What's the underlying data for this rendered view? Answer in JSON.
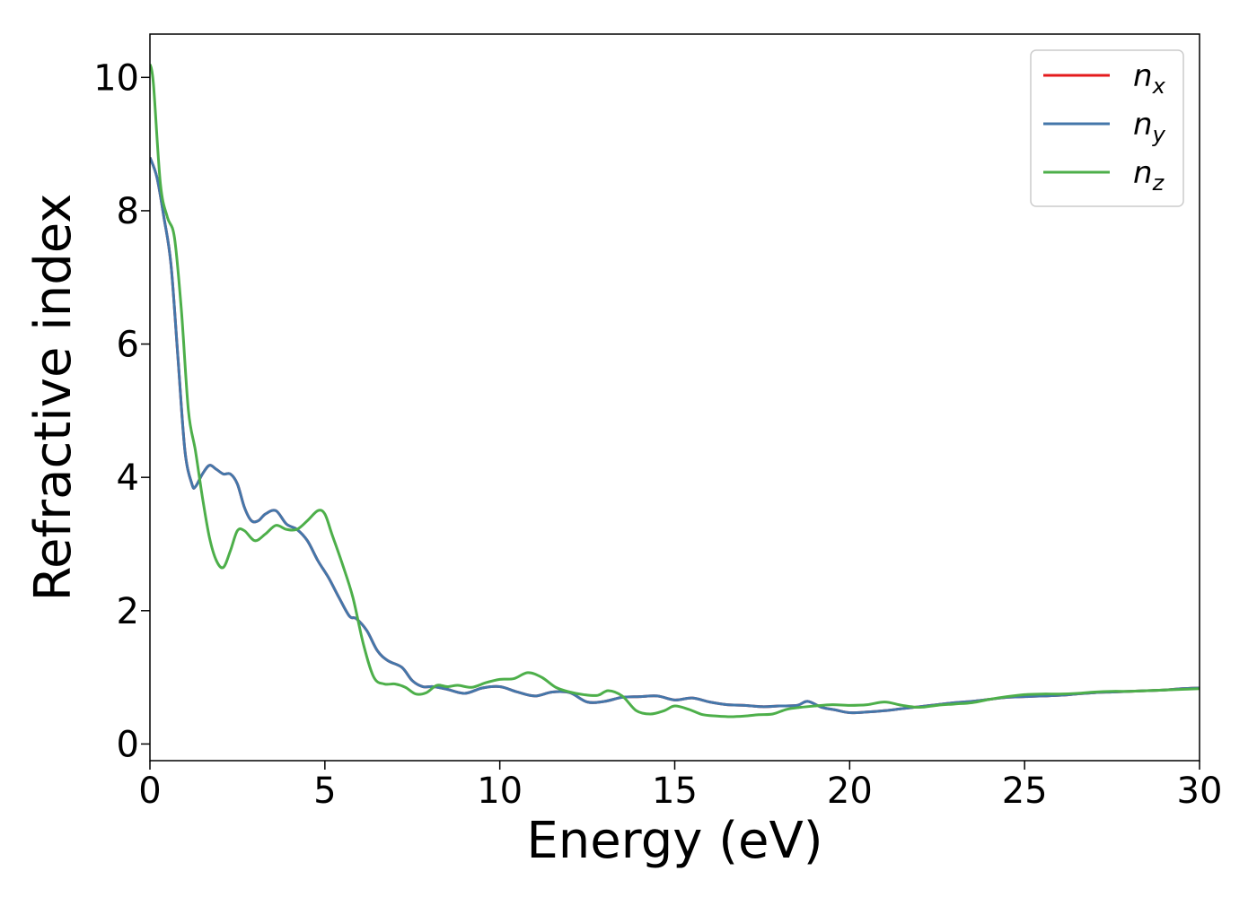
{
  "chart_data": {
    "type": "line",
    "title": "",
    "xlabel": "Energy (eV)",
    "ylabel": "Refractive index",
    "xlim": [
      0,
      30
    ],
    "ylim": [
      -0.25,
      10.65
    ],
    "xticks": [
      0,
      5,
      10,
      15,
      20,
      25,
      30
    ],
    "yticks": [
      0,
      2,
      4,
      6,
      8,
      10
    ],
    "grid": false,
    "legend_position": "top-right",
    "series": [
      {
        "name": "n",
        "subscript": "x",
        "color": "#e41a1c",
        "x": [
          0.0,
          0.2,
          0.4,
          0.6,
          0.8,
          1.0,
          1.2,
          1.3,
          1.5,
          1.7,
          1.9,
          2.1,
          2.3,
          2.5,
          2.7,
          2.9,
          3.1,
          3.3,
          3.6,
          3.9,
          4.2,
          4.5,
          4.8,
          5.1,
          5.4,
          5.7,
          5.9,
          6.2,
          6.5,
          6.8,
          7.2,
          7.5,
          7.8,
          8.1,
          8.5,
          9.0,
          9.5,
          10.0,
          10.5,
          11.0,
          11.5,
          12.0,
          12.5,
          13.0,
          13.5,
          14.0,
          14.5,
          15.0,
          15.5,
          16.0,
          16.5,
          17.0,
          17.5,
          18.0,
          18.5,
          18.8,
          19.2,
          19.6,
          20.0,
          20.5,
          21.0,
          21.5,
          22.0,
          22.5,
          23.0,
          23.5,
          24.0,
          24.5,
          25.0,
          25.5,
          26.0,
          26.5,
          27.0,
          27.5,
          28.0,
          28.5,
          29.0,
          29.5,
          30.0
        ],
        "y": [
          8.8,
          8.5,
          7.9,
          7.2,
          5.8,
          4.4,
          3.9,
          3.86,
          4.05,
          4.18,
          4.12,
          4.05,
          4.05,
          3.9,
          3.55,
          3.35,
          3.35,
          3.45,
          3.5,
          3.3,
          3.22,
          3.05,
          2.75,
          2.5,
          2.2,
          1.92,
          1.88,
          1.7,
          1.4,
          1.25,
          1.15,
          0.95,
          0.86,
          0.86,
          0.82,
          0.76,
          0.84,
          0.86,
          0.78,
          0.72,
          0.78,
          0.77,
          0.63,
          0.64,
          0.7,
          0.71,
          0.72,
          0.66,
          0.69,
          0.63,
          0.59,
          0.58,
          0.56,
          0.57,
          0.58,
          0.64,
          0.55,
          0.51,
          0.47,
          0.48,
          0.5,
          0.53,
          0.56,
          0.59,
          0.62,
          0.64,
          0.67,
          0.7,
          0.71,
          0.72,
          0.73,
          0.75,
          0.77,
          0.78,
          0.79,
          0.8,
          0.81,
          0.83,
          0.84
        ]
      },
      {
        "name": "n",
        "subscript": "y",
        "color": "#4477aa",
        "x": [
          0.0,
          0.2,
          0.4,
          0.6,
          0.8,
          1.0,
          1.2,
          1.3,
          1.5,
          1.7,
          1.9,
          2.1,
          2.3,
          2.5,
          2.7,
          2.9,
          3.1,
          3.3,
          3.6,
          3.9,
          4.2,
          4.5,
          4.8,
          5.1,
          5.4,
          5.7,
          5.9,
          6.2,
          6.5,
          6.8,
          7.2,
          7.5,
          7.8,
          8.1,
          8.5,
          9.0,
          9.5,
          10.0,
          10.5,
          11.0,
          11.5,
          12.0,
          12.5,
          13.0,
          13.5,
          14.0,
          14.5,
          15.0,
          15.5,
          16.0,
          16.5,
          17.0,
          17.5,
          18.0,
          18.5,
          18.8,
          19.2,
          19.6,
          20.0,
          20.5,
          21.0,
          21.5,
          22.0,
          22.5,
          23.0,
          23.5,
          24.0,
          24.5,
          25.0,
          25.5,
          26.0,
          26.5,
          27.0,
          27.5,
          28.0,
          28.5,
          29.0,
          29.5,
          30.0
        ],
        "y": [
          8.8,
          8.5,
          7.9,
          7.2,
          5.8,
          4.4,
          3.9,
          3.86,
          4.05,
          4.18,
          4.12,
          4.05,
          4.05,
          3.9,
          3.55,
          3.35,
          3.35,
          3.45,
          3.5,
          3.3,
          3.22,
          3.05,
          2.75,
          2.5,
          2.2,
          1.92,
          1.88,
          1.7,
          1.4,
          1.25,
          1.15,
          0.95,
          0.86,
          0.86,
          0.82,
          0.76,
          0.84,
          0.86,
          0.78,
          0.72,
          0.78,
          0.77,
          0.63,
          0.64,
          0.7,
          0.71,
          0.72,
          0.66,
          0.69,
          0.63,
          0.59,
          0.58,
          0.56,
          0.57,
          0.58,
          0.64,
          0.55,
          0.51,
          0.47,
          0.48,
          0.5,
          0.53,
          0.56,
          0.59,
          0.62,
          0.64,
          0.67,
          0.7,
          0.71,
          0.72,
          0.73,
          0.75,
          0.77,
          0.78,
          0.79,
          0.8,
          0.81,
          0.83,
          0.84
        ]
      },
      {
        "name": "n",
        "subscript": "z",
        "color": "#4daf4a",
        "x": [
          0.0,
          0.1,
          0.3,
          0.5,
          0.7,
          0.9,
          1.1,
          1.3,
          1.5,
          1.7,
          1.9,
          2.1,
          2.3,
          2.5,
          2.7,
          3.0,
          3.3,
          3.6,
          3.9,
          4.2,
          4.5,
          4.8,
          5.0,
          5.2,
          5.5,
          5.8,
          6.1,
          6.4,
          6.7,
          7.0,
          7.3,
          7.6,
          7.9,
          8.2,
          8.5,
          8.8,
          9.2,
          9.6,
          10.0,
          10.4,
          10.8,
          11.2,
          11.6,
          12.0,
          12.4,
          12.8,
          13.1,
          13.5,
          13.9,
          14.3,
          14.7,
          15.0,
          15.4,
          15.8,
          16.2,
          16.6,
          17.0,
          17.4,
          17.8,
          18.2,
          18.6,
          19.0,
          19.5,
          20.0,
          20.5,
          21.0,
          21.5,
          22.0,
          22.5,
          23.0,
          23.5,
          24.0,
          24.5,
          25.0,
          25.5,
          26.0,
          26.5,
          27.0,
          27.5,
          28.0,
          28.5,
          29.0,
          29.5,
          30.0
        ],
        "y": [
          10.2,
          9.9,
          8.4,
          7.9,
          7.6,
          6.5,
          5.0,
          4.4,
          3.7,
          3.1,
          2.75,
          2.65,
          2.9,
          3.2,
          3.2,
          3.05,
          3.15,
          3.28,
          3.22,
          3.22,
          3.35,
          3.5,
          3.45,
          3.15,
          2.7,
          2.2,
          1.5,
          1.0,
          0.9,
          0.9,
          0.85,
          0.75,
          0.77,
          0.88,
          0.86,
          0.88,
          0.85,
          0.92,
          0.97,
          0.98,
          1.07,
          1.0,
          0.85,
          0.78,
          0.74,
          0.73,
          0.8,
          0.72,
          0.5,
          0.45,
          0.5,
          0.57,
          0.52,
          0.44,
          0.42,
          0.41,
          0.42,
          0.44,
          0.45,
          0.52,
          0.55,
          0.57,
          0.59,
          0.58,
          0.59,
          0.63,
          0.58,
          0.55,
          0.58,
          0.6,
          0.62,
          0.67,
          0.71,
          0.74,
          0.75,
          0.75,
          0.76,
          0.78,
          0.79,
          0.79,
          0.8,
          0.81,
          0.82,
          0.83
        ]
      }
    ]
  }
}
